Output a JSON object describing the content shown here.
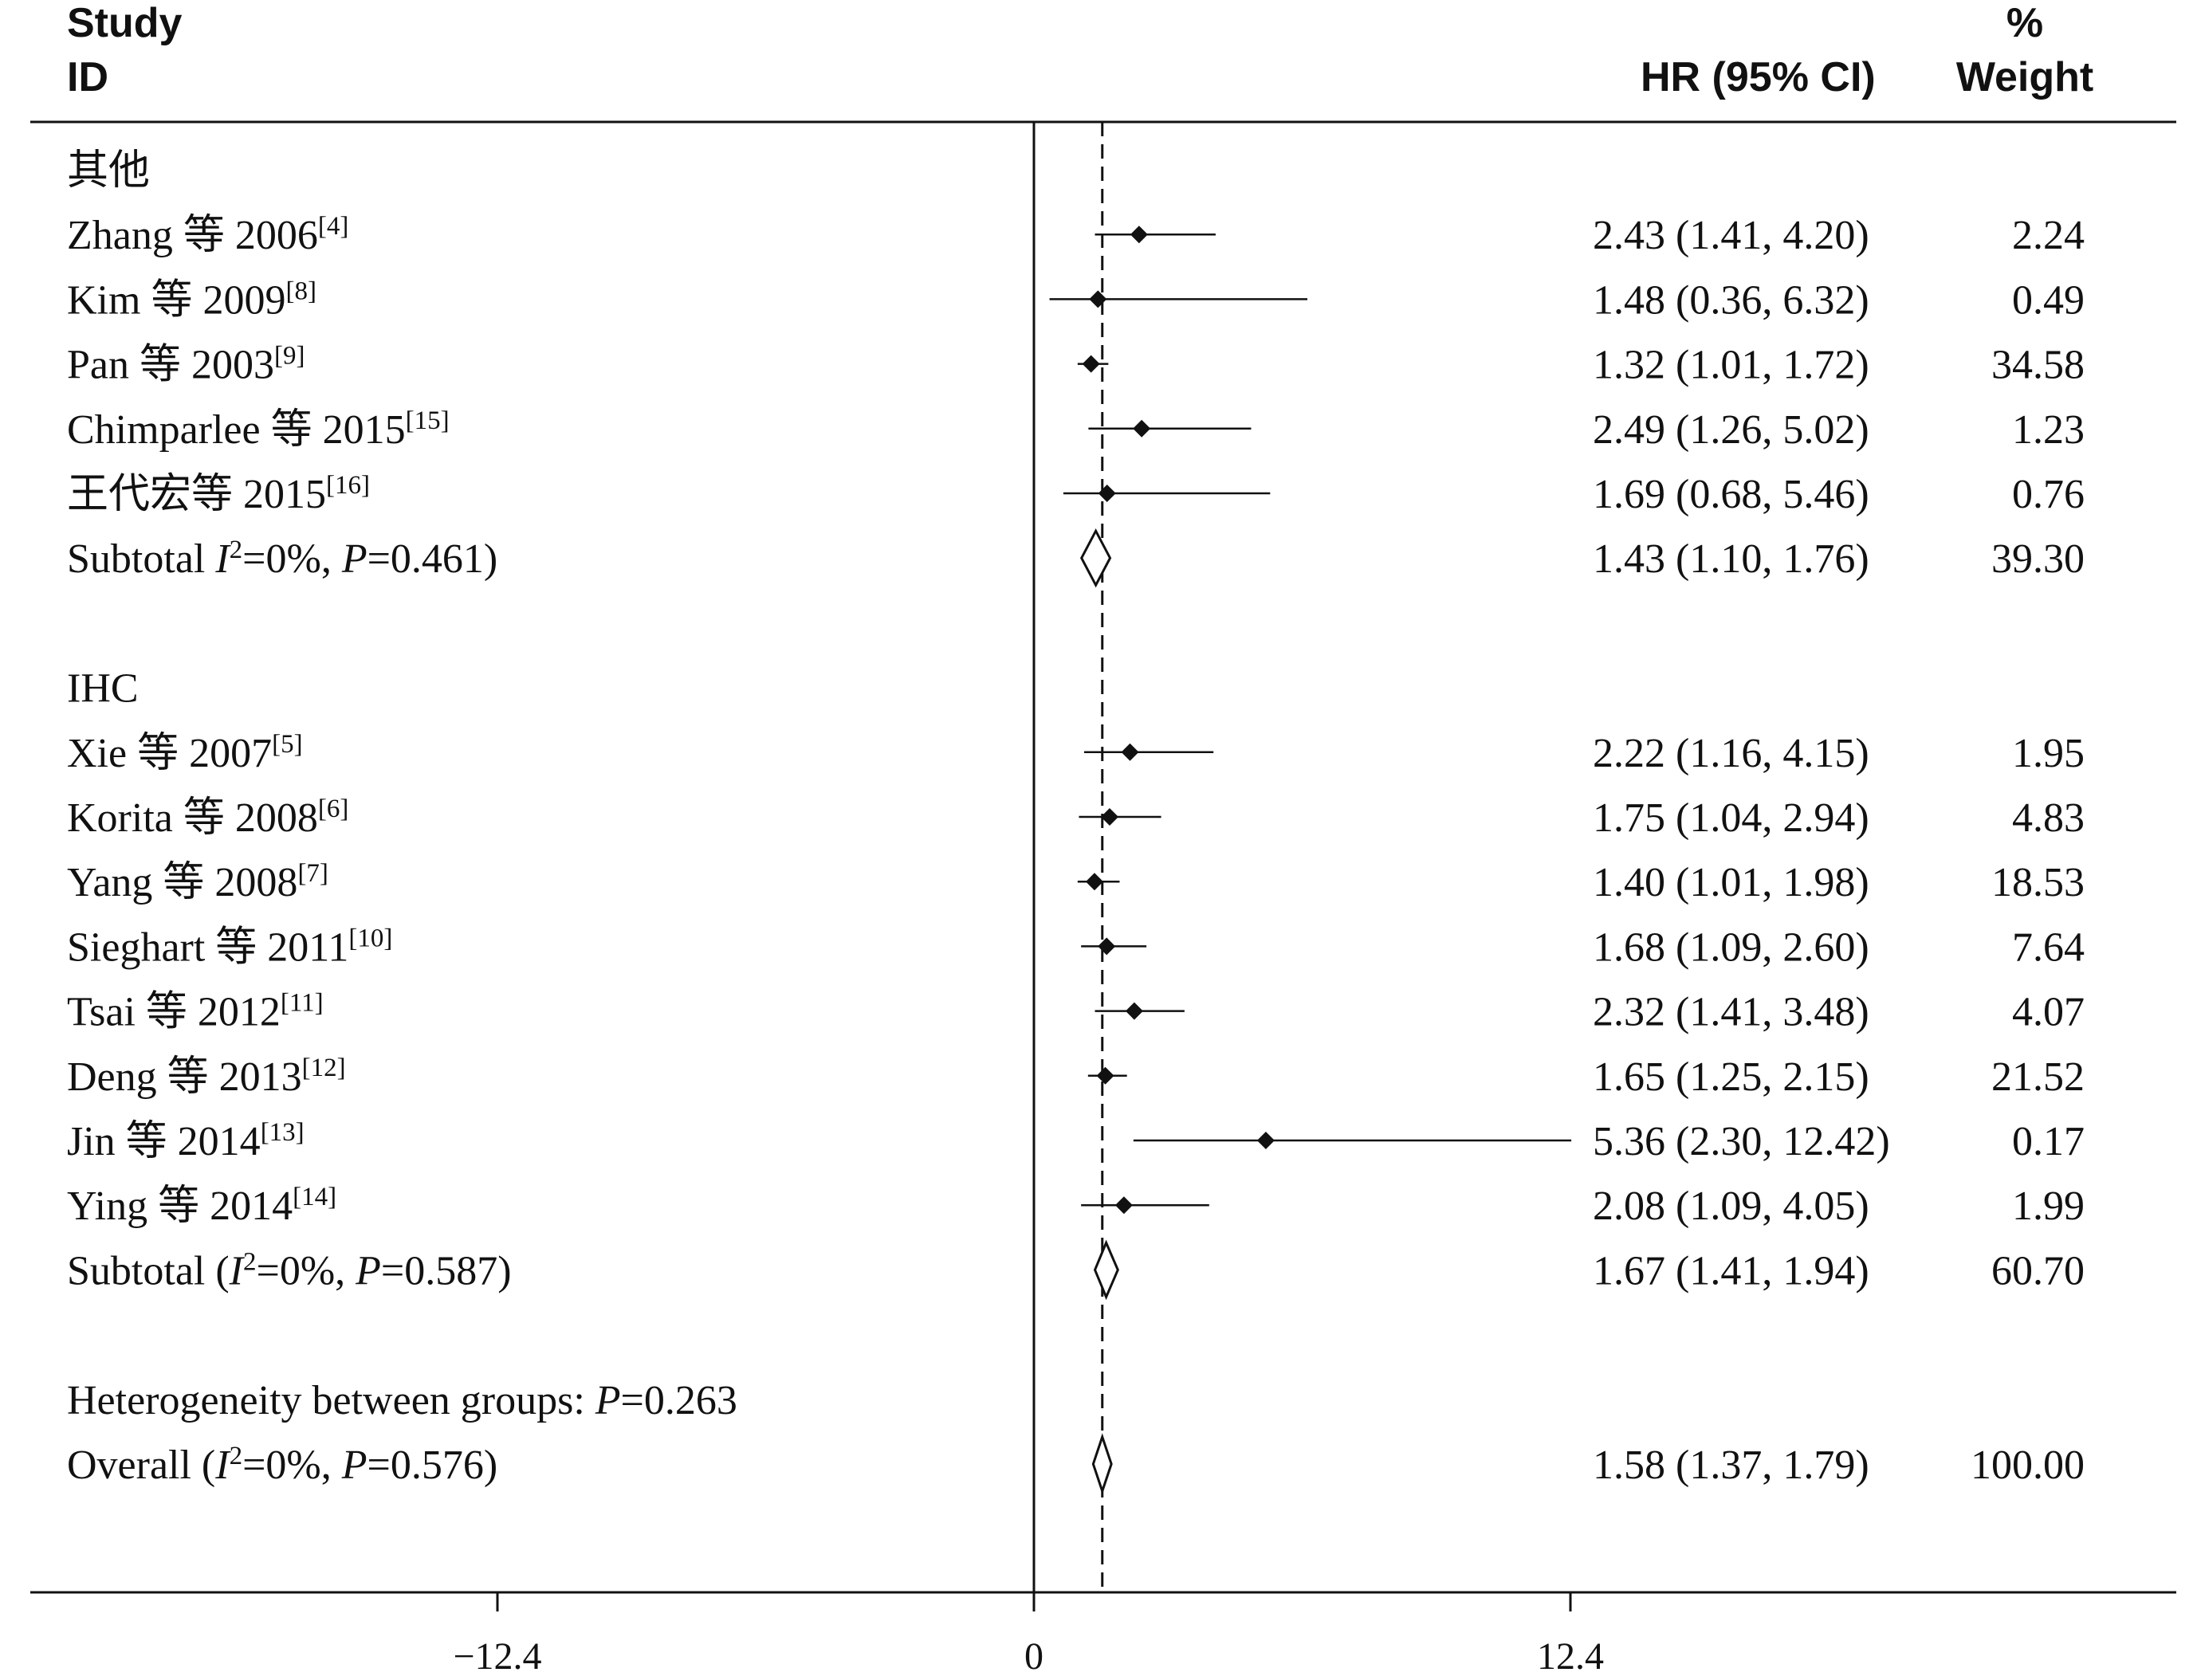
{
  "header": {
    "study_line1": "Study",
    "study_line2": "ID",
    "hr_label": "HR (95% CI)",
    "weight_line1": "%",
    "weight_line2": "Weight"
  },
  "chart_data": {
    "type": "forest",
    "xlim": [
      -20.4,
      22.2
    ],
    "null_line": 0,
    "overall_line": 1.58,
    "xticks": [
      {
        "value": -12.4,
        "label": "−12.4"
      },
      {
        "value": 0,
        "label": "0"
      },
      {
        "value": 12.4,
        "label": "12.4"
      }
    ],
    "groups": [
      {
        "name": "其他",
        "studies": [
          {
            "author": "Zhang 等 2006",
            "ref": "[4]",
            "hr": 2.43,
            "lo": 1.41,
            "hi": 4.2,
            "ci_text": "2.43 (1.41, 4.20)",
            "weight": "2.24"
          },
          {
            "author": "Kim 等 2009",
            "ref": "[8]",
            "hr": 1.48,
            "lo": 0.36,
            "hi": 6.32,
            "ci_text": "1.48 (0.36, 6.32)",
            "weight": "0.49"
          },
          {
            "author": "Pan 等 2003",
            "ref": "[9]",
            "hr": 1.32,
            "lo": 1.01,
            "hi": 1.72,
            "ci_text": "1.32 (1.01, 1.72)",
            "weight": "34.58"
          },
          {
            "author": "Chimparlee 等 2015",
            "ref": "[15]",
            "hr": 2.49,
            "lo": 1.26,
            "hi": 5.02,
            "ci_text": "2.49 (1.26, 5.02)",
            "weight": "1.23"
          },
          {
            "author": "王代宏等 2015",
            "ref": "[16]",
            "hr": 1.69,
            "lo": 0.68,
            "hi": 5.46,
            "ci_text": "1.69 (0.68, 5.46)",
            "weight": "0.76"
          }
        ],
        "subtotal": {
          "prefix": "Subtotal  ",
          "i2": "=0%, ",
          "p": "=0.461)",
          "hr": 1.43,
          "lo": 1.1,
          "hi": 1.76,
          "ci_text": "1.43 (1.10, 1.76)",
          "weight": "39.30"
        }
      },
      {
        "name": "IHC",
        "studies": [
          {
            "author": "Xie 等 2007",
            "ref": "[5]",
            "hr": 2.22,
            "lo": 1.16,
            "hi": 4.15,
            "ci_text": "2.22 (1.16, 4.15)",
            "weight": "1.95"
          },
          {
            "author": "Korita 等 2008",
            "ref": "[6]",
            "hr": 1.75,
            "lo": 1.04,
            "hi": 2.94,
            "ci_text": "1.75 (1.04, 2.94)",
            "weight": "4.83"
          },
          {
            "author": "Yang 等 2008",
            "ref": "[7]",
            "hr": 1.4,
            "lo": 1.01,
            "hi": 1.98,
            "ci_text": "1.40 (1.01, 1.98)",
            "weight": "18.53"
          },
          {
            "author": "Sieghart 等 2011",
            "ref": "[10]",
            "hr": 1.68,
            "lo": 1.09,
            "hi": 2.6,
            "ci_text": "1.68 (1.09, 2.60)",
            "weight": "7.64"
          },
          {
            "author": "Tsai 等 2012",
            "ref": "[11]",
            "hr": 2.32,
            "lo": 1.41,
            "hi": 3.48,
            "ci_text": "2.32 (1.41, 3.48)",
            "weight": "4.07"
          },
          {
            "author": "Deng 等 2013",
            "ref": "[12]",
            "hr": 1.65,
            "lo": 1.25,
            "hi": 2.15,
            "ci_text": "1.65 (1.25, 2.15)",
            "weight": "21.52"
          },
          {
            "author": "Jin 等 2014",
            "ref": "[13]",
            "hr": 5.36,
            "lo": 2.3,
            "hi": 12.42,
            "ci_text": "5.36 (2.30, 12.42)",
            "weight": "0.17"
          },
          {
            "author": "Ying 等 2014",
            "ref": "[14]",
            "hr": 2.08,
            "lo": 1.09,
            "hi": 4.05,
            "ci_text": "2.08 (1.09, 4.05)",
            "weight": "1.99"
          }
        ],
        "subtotal": {
          "prefix": "Subtotal  (",
          "i2": "=0%, ",
          "p": "=0.587)",
          "hr": 1.67,
          "lo": 1.41,
          "hi": 1.94,
          "ci_text": "1.67 (1.41, 1.94)",
          "weight": "60.70"
        }
      }
    ],
    "heterogeneity": {
      "prefix": "Heterogeneity between groups: ",
      "p": "=0.263"
    },
    "overall": {
      "prefix": "Overall  (",
      "i2": "=0%, ",
      "p": "=0.576)",
      "hr": 1.58,
      "lo": 1.37,
      "hi": 1.79,
      "ci_text": "1.58 (1.37, 1.79)",
      "weight": "100.00"
    }
  }
}
